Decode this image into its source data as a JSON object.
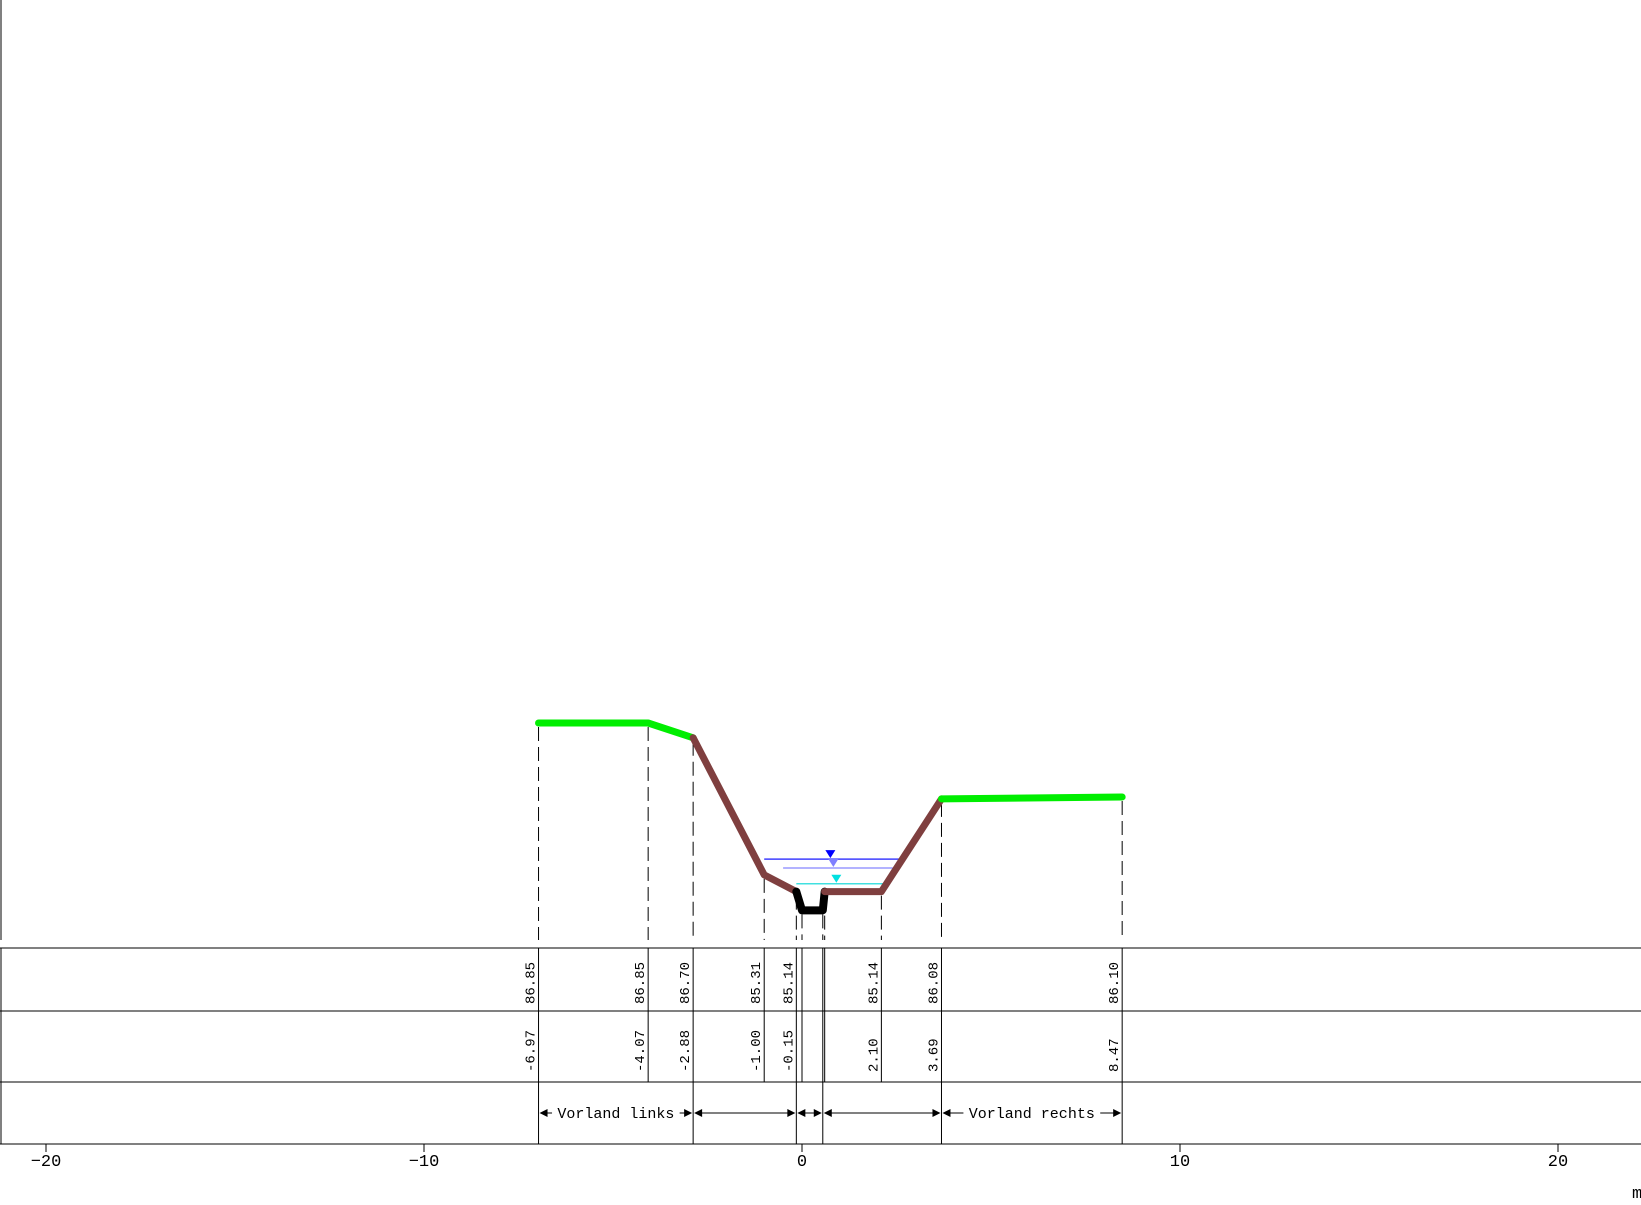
{
  "diagram": {
    "x_axis": {
      "ticks": [
        -20,
        -10,
        0,
        10,
        20
      ],
      "unit": "m",
      "range": [
        -21.2,
        22.1
      ]
    },
    "elevations": [
      "86.85",
      "86.85",
      "86.70",
      "85.31",
      "85.14",
      "85.14",
      "86.08",
      "86.10"
    ],
    "stations": [
      "-6.97",
      "-4.07",
      "-2.88",
      "-1.00",
      "-0.15",
      "2.10",
      "3.69",
      "8.47"
    ],
    "zones": [
      {
        "label": "Vorland links",
        "from": -6.97,
        "to": -2.88
      },
      {
        "label": "",
        "from": -2.88,
        "to": -0.15
      },
      {
        "label": "",
        "from": -0.15,
        "to": 0.55
      },
      {
        "label": "",
        "from": 0.55,
        "to": 3.69
      },
      {
        "label": "Vorland rechts",
        "from": 3.69,
        "to": 8.47
      }
    ],
    "profile_points": [
      {
        "x": -6.97,
        "z": 86.85
      },
      {
        "x": -4.07,
        "z": 86.85
      },
      {
        "x": -2.88,
        "z": 86.7
      },
      {
        "x": -1.0,
        "z": 85.31
      },
      {
        "x": -0.15,
        "z": 85.14
      },
      {
        "x": 0.0,
        "z": 84.95
      },
      {
        "x": 0.55,
        "z": 84.95
      },
      {
        "x": 0.6,
        "z": 85.14
      },
      {
        "x": 2.1,
        "z": 85.14
      },
      {
        "x": 3.69,
        "z": 86.08
      },
      {
        "x": 8.47,
        "z": 86.1
      }
    ],
    "water_levels": [
      {
        "z": 85.47,
        "x_from": -1.0,
        "x_to": 2.6,
        "color": "#3f3fff"
      },
      {
        "z": 85.38,
        "x_from": -0.5,
        "x_to": 2.4,
        "color": "#9a9aff"
      },
      {
        "z": 85.22,
        "x_from": -0.15,
        "x_to": 2.3,
        "color": "#40e0e0"
      }
    ],
    "colors": {
      "foreland": "#00ee00",
      "channel": "#7f3f3f",
      "channel_bed": "#000000",
      "water_hw": "#0000ff",
      "water_mw": "#8080ff",
      "water_nw": "#00e0e0"
    }
  }
}
